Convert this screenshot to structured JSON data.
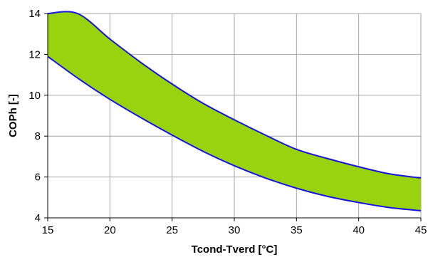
{
  "chart_data": {
    "type": "area",
    "title": "",
    "xlabel": "Tcond-Tverd [°C]",
    "ylabel": "COPh [-]",
    "xlim": [
      15,
      45
    ],
    "ylim": [
      4,
      14
    ],
    "xticks": [
      "15",
      "20",
      "25",
      "30",
      "35",
      "40",
      "45"
    ],
    "yticks": [
      "4",
      "6",
      "8",
      "10",
      "12",
      "14"
    ],
    "grid": true,
    "legend": "none",
    "colors": {
      "band_fill": "#99D30F",
      "boundary_line": "#1414E0",
      "grid": "#A6A6A6",
      "axis": "#000000"
    },
    "series": [
      {
        "x": [
          15,
          17.4,
          20,
          22.5,
          25,
          27.5,
          30,
          32.5,
          35,
          37.5,
          40,
          42.5,
          45
        ],
        "y": [
          14,
          14,
          12.75,
          11.6,
          10.55,
          9.6,
          8.8,
          8.05,
          7.35,
          6.9,
          6.5,
          6.15,
          5.95
        ]
      },
      {
        "x": [
          15,
          17.5,
          20,
          22.5,
          25,
          27.5,
          30,
          32.5,
          35,
          37.5,
          40,
          42.5,
          45
        ],
        "y": [
          11.9,
          10.8,
          9.8,
          8.9,
          8.05,
          7.25,
          6.55,
          5.95,
          5.45,
          5.05,
          4.75,
          4.5,
          4.35
        ]
      }
    ]
  }
}
